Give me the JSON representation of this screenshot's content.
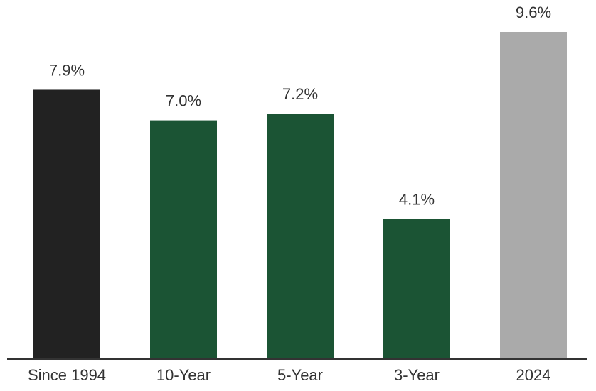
{
  "chart_data": {
    "type": "bar",
    "categories": [
      "Since 1994",
      "10-Year",
      "5-Year",
      "3-Year",
      "2024"
    ],
    "values": [
      7.9,
      7.0,
      7.2,
      4.1,
      9.6
    ],
    "value_labels": [
      "7.9%",
      "7.0%",
      "7.2%",
      "4.1%",
      "9.6%"
    ],
    "colors": [
      "#222222",
      "#1b5434",
      "#1b5434",
      "#1b5434",
      "#aaaaaa"
    ]
  }
}
